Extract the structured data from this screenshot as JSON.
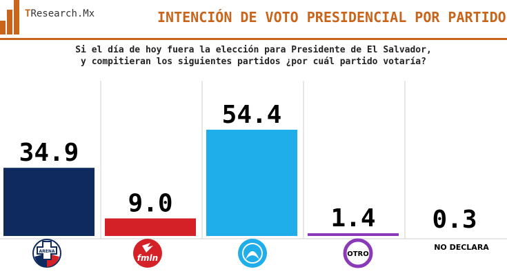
{
  "header": {
    "brand_prefix": "T",
    "brand_rest": "Research.Mx",
    "title": "INTENCIÓN DE VOTO PRESIDENCIAL POR PARTIDO"
  },
  "question": {
    "line1": "Si el día de hoy fuera la elección para Presidente de El Salvador,",
    "line2": "y compitieran los siguientes partidos ¿por cuál partido votaría?"
  },
  "colors": {
    "accent": "#c9651b",
    "arena": "#0e2a5e",
    "fmln": "#d42027",
    "nuevas_ideas": "#1faee9",
    "otro": "#8a3ab9",
    "no_declara": "#ffffff"
  },
  "icons": [
    "arena-logo-icon",
    "fmln-logo-icon",
    "nuevas-ideas-logo-icon",
    "otro-circle-icon"
  ],
  "chart_data": {
    "type": "bar",
    "title": "INTENCIÓN DE VOTO PRESIDENCIAL POR PARTIDO",
    "categories": [
      "ARENA",
      "FMLN",
      "NUEVAS IDEAS",
      "OTRO",
      "NO DECLARA"
    ],
    "values": [
      34.9,
      9.0,
      54.4,
      1.4,
      0.3
    ],
    "value_labels": [
      "34.9",
      "9.0",
      "54.4",
      "1.4",
      "0.3"
    ],
    "colors": [
      "#0e2a5e",
      "#d42027",
      "#1faee9",
      "#8a3ab9",
      "#ffffff"
    ],
    "xlabel": "",
    "ylabel": "",
    "ylim": [
      0,
      60
    ],
    "grid": false,
    "legend": "none",
    "category_labels": {
      "arena_logo": "ARENA",
      "fmln_logo": "fmln",
      "otro": "OTRO",
      "no_declara": "NO DECLARA"
    }
  }
}
